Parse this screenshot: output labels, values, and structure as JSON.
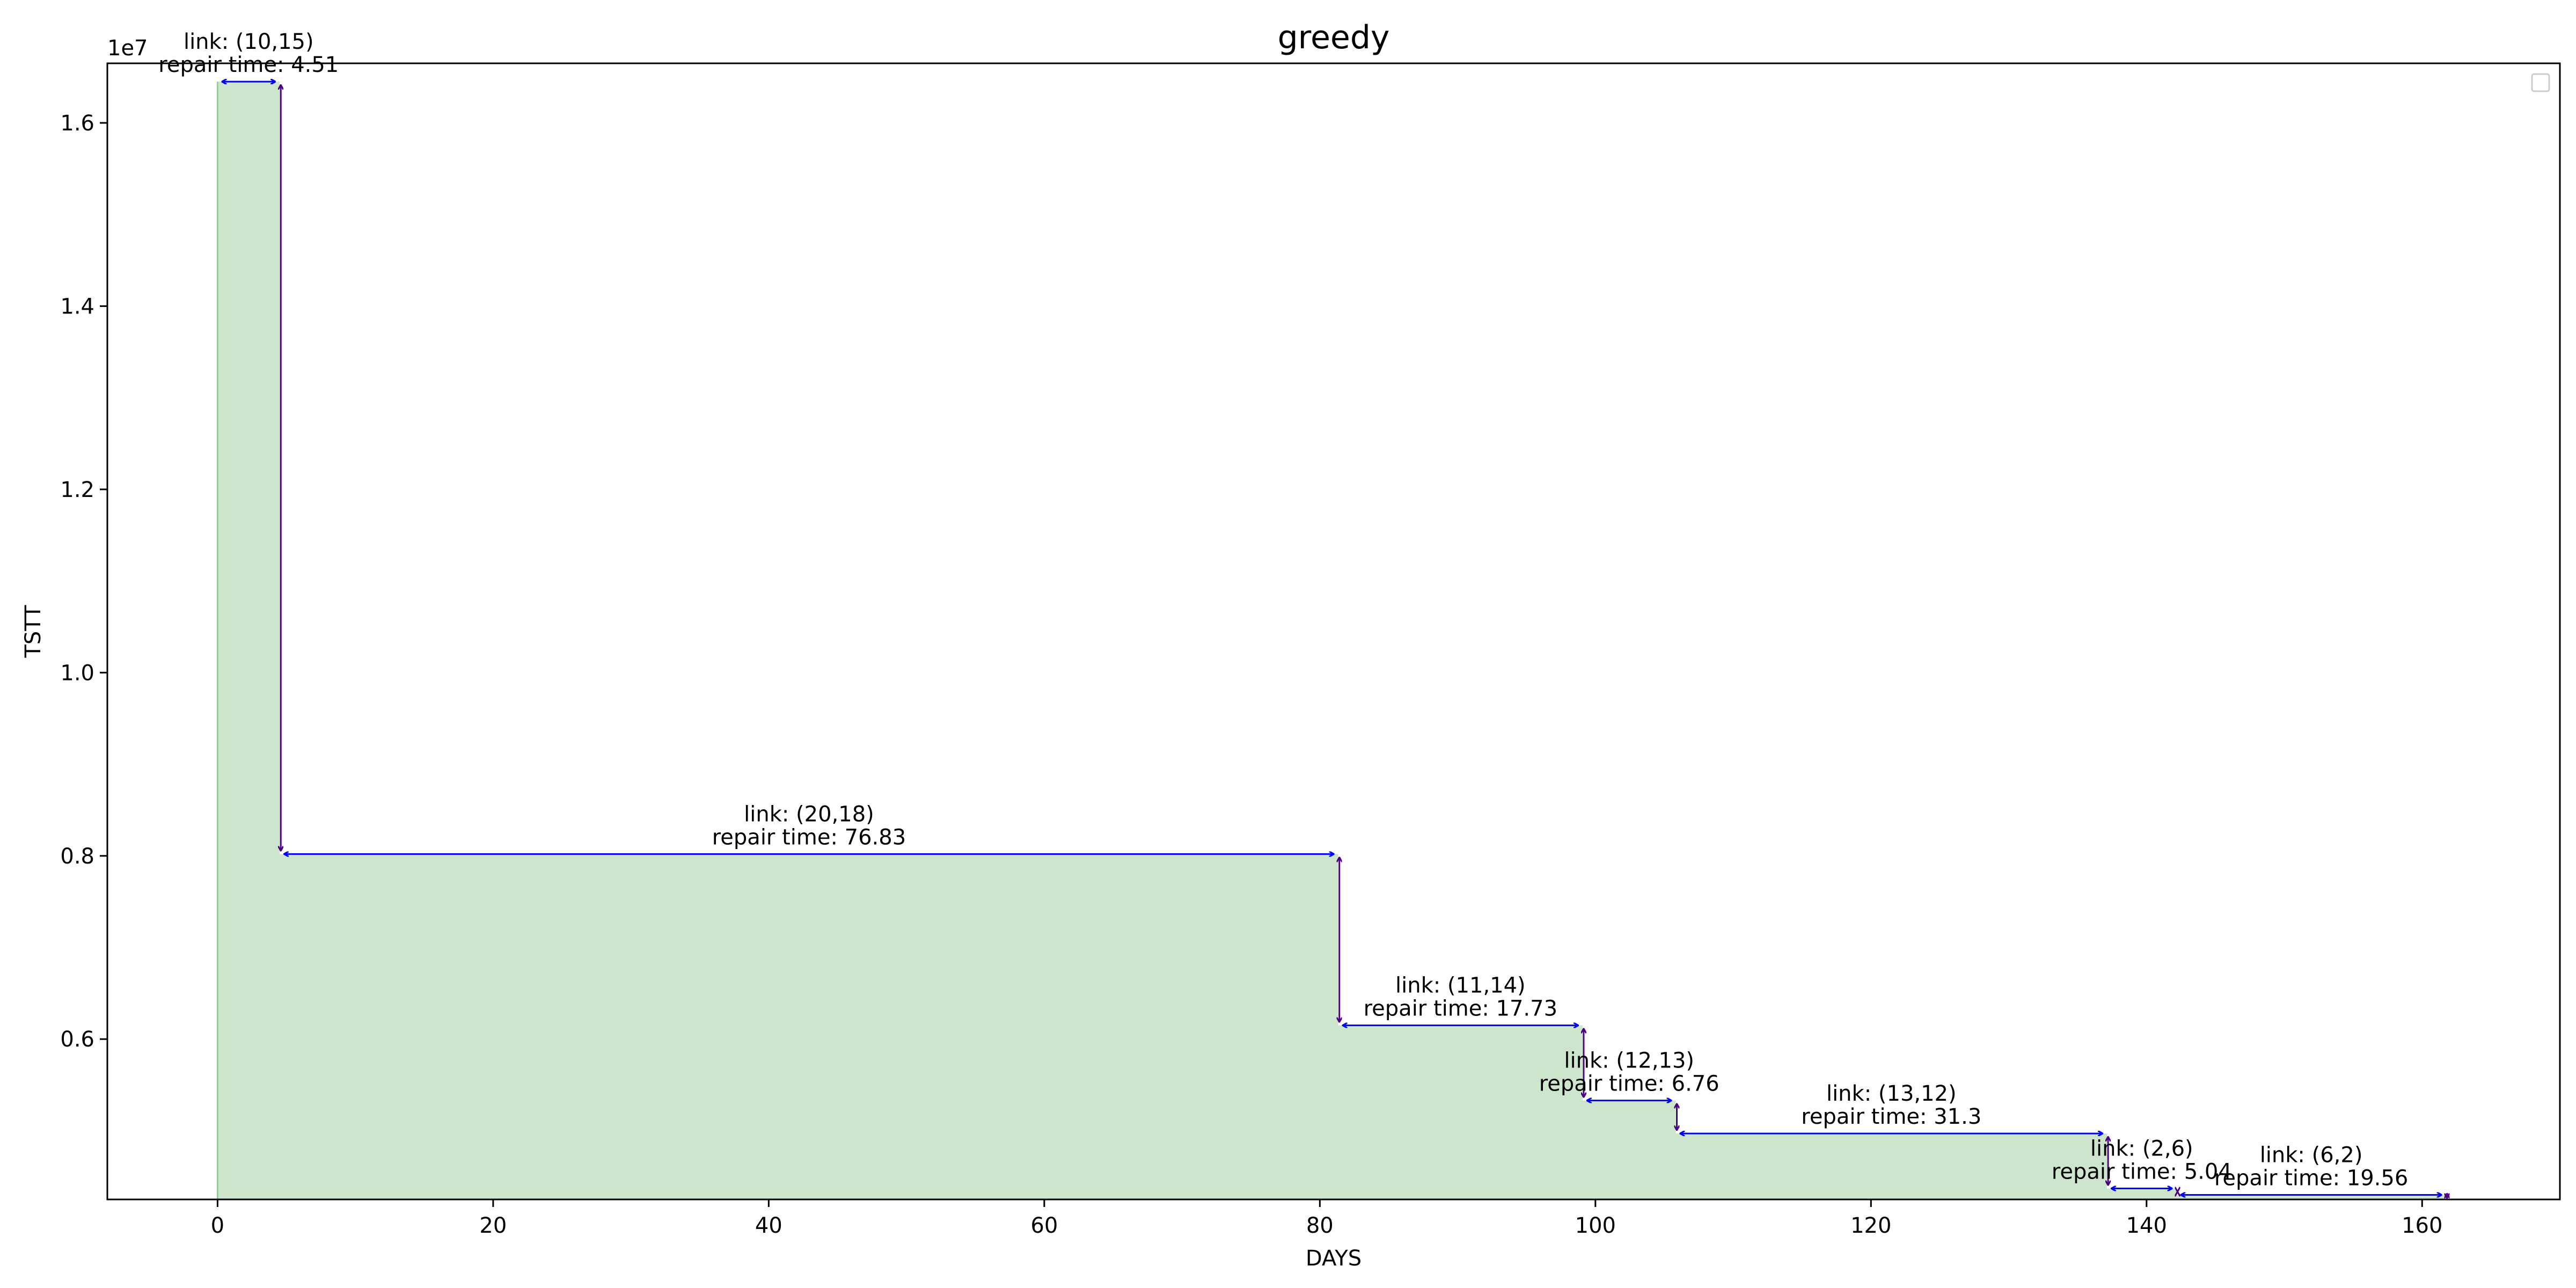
{
  "chart_data": {
    "type": "area",
    "title": "greedy",
    "xlabel": "DAYS",
    "ylabel": "TSTT",
    "y_offset_label": "1e7",
    "xlim": [
      -8,
      170
    ],
    "ylim": [
      0.425,
      1.665
    ],
    "y_scale_factor": 10000000,
    "xticks": [
      0,
      20,
      40,
      60,
      80,
      100,
      120,
      140,
      160
    ],
    "xtick_labels": [
      "0",
      "20",
      "40",
      "60",
      "80",
      "100",
      "120",
      "140",
      "160"
    ],
    "yticks": [
      0.6,
      0.8,
      1.0,
      1.2,
      1.4,
      1.6
    ],
    "ytick_labels": [
      "0.6",
      "0.8",
      "1.0",
      "1.2",
      "1.4",
      "1.6"
    ],
    "grid": false,
    "legend": "top-right (empty)",
    "fill_color": "#cde5cd",
    "fill_edge_color": "#9cc99c",
    "horizontal_arrow_color": "#0000ff",
    "vertical_arrow_color": "#4b0082",
    "steps": [
      {
        "x_start": 0.0,
        "x_end": 4.51,
        "tstt": 1.645,
        "link": "link: (10,15)",
        "repair": "repair time: 4.51"
      },
      {
        "x_start": 4.51,
        "x_end": 81.34,
        "tstt": 0.802,
        "link": "link: (20,18)",
        "repair": "repair time: 76.83"
      },
      {
        "x_start": 81.34,
        "x_end": 99.07,
        "tstt": 0.615,
        "link": "link: (11,14)",
        "repair": "repair time: 17.73"
      },
      {
        "x_start": 99.07,
        "x_end": 105.83,
        "tstt": 0.533,
        "link": "link: (12,13)",
        "repair": "repair time: 6.76"
      },
      {
        "x_start": 105.83,
        "x_end": 137.13,
        "tstt": 0.497,
        "link": "link: (13,12)",
        "repair": "repair time: 31.3"
      },
      {
        "x_start": 137.13,
        "x_end": 142.17,
        "tstt": 0.437,
        "link": "link: (2,6)",
        "repair": "repair time: 5.04"
      },
      {
        "x_start": 142.17,
        "x_end": 161.73,
        "tstt": 0.43,
        "link": "link: (6,2)",
        "repair": "repair time: 19.56"
      }
    ],
    "final_tstt": 0.428
  }
}
